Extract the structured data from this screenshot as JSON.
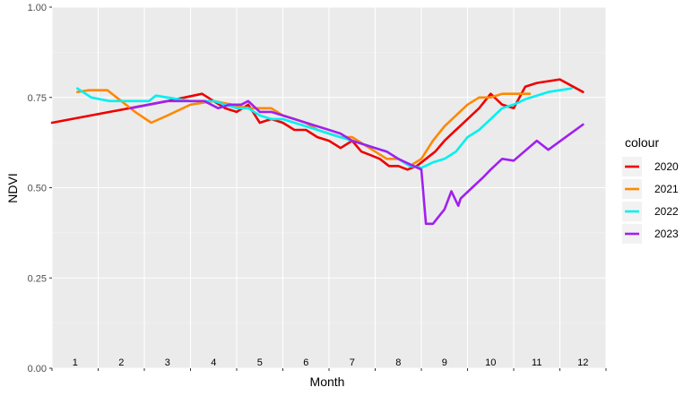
{
  "chart_data": {
    "type": "line",
    "title": "",
    "xlabel": "Month",
    "ylabel": "NDVI",
    "ylim": [
      0,
      1
    ],
    "xlim": [
      0.5,
      12.5
    ],
    "y_ticks": [
      "0.00",
      "0.25",
      "0.50",
      "0.75",
      "1.00"
    ],
    "y_tick_values": [
      0,
      0.25,
      0.5,
      0.75,
      1.0
    ],
    "month_labels": [
      "1",
      "2",
      "3",
      "4",
      "5",
      "6",
      "7",
      "8",
      "9",
      "10",
      "11",
      "12"
    ],
    "grid": true,
    "legend": {
      "title": "colour",
      "position": "right"
    },
    "series": [
      {
        "name": "2020",
        "color": "#ee0000",
        "points": [
          [
            0.5,
            0.68
          ],
          [
            3.0,
            0.74
          ],
          [
            3.75,
            0.76
          ],
          [
            4.0,
            0.74
          ],
          [
            4.25,
            0.72
          ],
          [
            4.5,
            0.71
          ],
          [
            4.75,
            0.73
          ],
          [
            5.0,
            0.68
          ],
          [
            5.25,
            0.69
          ],
          [
            5.5,
            0.68
          ],
          [
            5.75,
            0.66
          ],
          [
            6.0,
            0.66
          ],
          [
            6.25,
            0.64
          ],
          [
            6.5,
            0.63
          ],
          [
            6.75,
            0.61
          ],
          [
            7.0,
            0.63
          ],
          [
            7.2,
            0.6
          ],
          [
            7.4,
            0.59
          ],
          [
            7.6,
            0.58
          ],
          [
            7.8,
            0.56
          ],
          [
            8.0,
            0.56
          ],
          [
            8.2,
            0.55
          ],
          [
            8.4,
            0.56
          ],
          [
            8.6,
            0.58
          ],
          [
            8.8,
            0.6
          ],
          [
            9.0,
            0.63
          ],
          [
            9.25,
            0.66
          ],
          [
            9.5,
            0.69
          ],
          [
            9.75,
            0.72
          ],
          [
            10.0,
            0.76
          ],
          [
            10.25,
            0.73
          ],
          [
            10.5,
            0.72
          ],
          [
            10.75,
            0.78
          ],
          [
            11.0,
            0.79
          ],
          [
            11.5,
            0.8
          ],
          [
            12.0,
            0.765
          ]
        ]
      },
      {
        "name": "2021",
        "color": "#ff8800",
        "points": [
          [
            1.05,
            0.765
          ],
          [
            1.3,
            0.77
          ],
          [
            1.7,
            0.77
          ],
          [
            2.0,
            0.74
          ],
          [
            2.3,
            0.71
          ],
          [
            2.65,
            0.68
          ],
          [
            3.0,
            0.7
          ],
          [
            3.5,
            0.73
          ],
          [
            4.0,
            0.74
          ],
          [
            4.4,
            0.73
          ],
          [
            4.75,
            0.72
          ],
          [
            5.0,
            0.72
          ],
          [
            5.25,
            0.72
          ],
          [
            5.5,
            0.7
          ],
          [
            5.75,
            0.69
          ],
          [
            6.0,
            0.68
          ],
          [
            6.25,
            0.66
          ],
          [
            6.5,
            0.65
          ],
          [
            6.75,
            0.64
          ],
          [
            7.0,
            0.64
          ],
          [
            7.25,
            0.62
          ],
          [
            7.5,
            0.6
          ],
          [
            7.75,
            0.58
          ],
          [
            8.0,
            0.58
          ],
          [
            8.25,
            0.56
          ],
          [
            8.5,
            0.58
          ],
          [
            8.75,
            0.63
          ],
          [
            9.0,
            0.67
          ],
          [
            9.25,
            0.7
          ],
          [
            9.5,
            0.73
          ],
          [
            9.75,
            0.75
          ],
          [
            10.0,
            0.75
          ],
          [
            10.25,
            0.76
          ],
          [
            10.5,
            0.76
          ],
          [
            10.85,
            0.76
          ]
        ]
      },
      {
        "name": "2022",
        "color": "#00f0f0",
        "points": [
          [
            1.05,
            0.775
          ],
          [
            1.35,
            0.75
          ],
          [
            1.75,
            0.74
          ],
          [
            2.1,
            0.74
          ],
          [
            2.6,
            0.74
          ],
          [
            2.75,
            0.755
          ],
          [
            3.0,
            0.75
          ],
          [
            3.5,
            0.74
          ],
          [
            4.0,
            0.74
          ],
          [
            4.5,
            0.72
          ],
          [
            4.75,
            0.72
          ],
          [
            5.0,
            0.7
          ],
          [
            5.25,
            0.69
          ],
          [
            5.5,
            0.69
          ],
          [
            5.75,
            0.68
          ],
          [
            6.0,
            0.67
          ],
          [
            6.25,
            0.66
          ],
          [
            6.5,
            0.65
          ],
          [
            6.75,
            0.64
          ],
          [
            7.0,
            0.63
          ],
          [
            7.25,
            0.62
          ],
          [
            7.5,
            0.61
          ],
          [
            7.75,
            0.6
          ],
          [
            8.0,
            0.58
          ],
          [
            8.25,
            0.56
          ],
          [
            8.5,
            0.555
          ],
          [
            8.75,
            0.57
          ],
          [
            9.0,
            0.58
          ],
          [
            9.25,
            0.6
          ],
          [
            9.5,
            0.64
          ],
          [
            9.75,
            0.66
          ],
          [
            10.0,
            0.69
          ],
          [
            10.25,
            0.72
          ],
          [
            10.5,
            0.73
          ],
          [
            10.75,
            0.745
          ],
          [
            11.0,
            0.755
          ],
          [
            11.25,
            0.765
          ],
          [
            11.5,
            0.77
          ],
          [
            11.75,
            0.775
          ]
        ]
      },
      {
        "name": "2023",
        "color": "#a020f0",
        "points": [
          [
            2.2,
            0.72
          ],
          [
            2.6,
            0.73
          ],
          [
            3.0,
            0.74
          ],
          [
            3.5,
            0.74
          ],
          [
            3.8,
            0.74
          ],
          [
            4.1,
            0.72
          ],
          [
            4.35,
            0.73
          ],
          [
            4.6,
            0.73
          ],
          [
            4.75,
            0.74
          ],
          [
            5.0,
            0.71
          ],
          [
            5.25,
            0.71
          ],
          [
            5.5,
            0.7
          ],
          [
            5.75,
            0.69
          ],
          [
            6.0,
            0.68
          ],
          [
            6.25,
            0.67
          ],
          [
            6.5,
            0.66
          ],
          [
            6.75,
            0.65
          ],
          [
            7.0,
            0.63
          ],
          [
            7.25,
            0.62
          ],
          [
            7.5,
            0.61
          ],
          [
            7.75,
            0.6
          ],
          [
            8.0,
            0.58
          ],
          [
            8.25,
            0.565
          ],
          [
            8.5,
            0.55
          ],
          [
            8.6,
            0.4
          ],
          [
            8.75,
            0.4
          ],
          [
            9.0,
            0.44
          ],
          [
            9.15,
            0.49
          ],
          [
            9.3,
            0.45
          ],
          [
            9.35,
            0.47
          ],
          [
            9.6,
            0.5
          ],
          [
            9.85,
            0.53
          ],
          [
            10.0,
            0.55
          ],
          [
            10.25,
            0.58
          ],
          [
            10.5,
            0.575
          ],
          [
            11.0,
            0.63
          ],
          [
            11.25,
            0.605
          ],
          [
            12.0,
            0.675
          ]
        ]
      }
    ]
  }
}
